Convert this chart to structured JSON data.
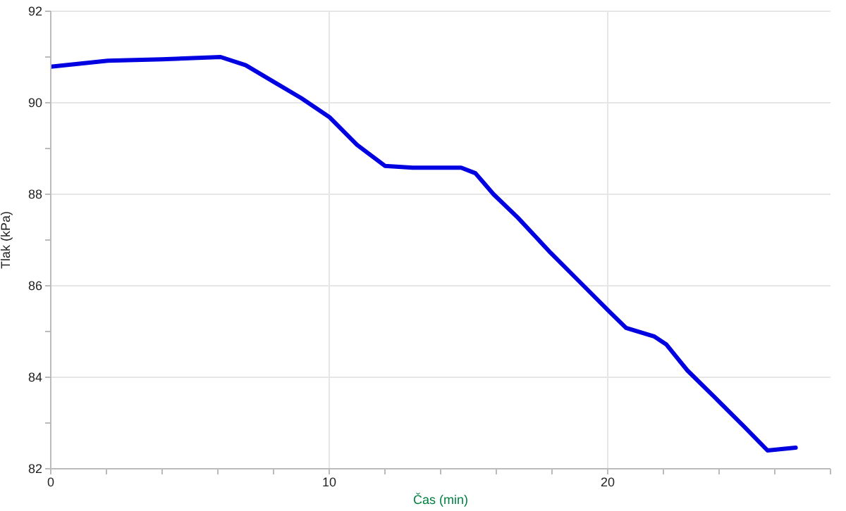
{
  "chart_data": {
    "type": "line",
    "xlabel": "Čas (min)",
    "ylabel": "Tlak (kPa)",
    "xlim": [
      0,
      28
    ],
    "xticks": [
      0,
      {
        "value": 2,
        "label": null
      },
      {
        "value": 4,
        "label": null
      },
      {
        "value": 6,
        "label": null
      },
      {
        "value": 8,
        "label": null
      },
      10,
      {
        "value": 12,
        "label": null
      },
      {
        "value": 14,
        "label": null
      },
      {
        "value": 16,
        "label": null
      },
      {
        "value": 18,
        "label": null
      },
      20,
      {
        "value": 22,
        "label": null
      },
      {
        "value": 24,
        "label": null
      },
      {
        "value": 26,
        "label": null
      },
      {
        "value": 28,
        "label": null
      }
    ],
    "ylim": [
      82,
      92
    ],
    "yticks": [
      82,
      {
        "value": 83,
        "label": null
      },
      84,
      {
        "value": 85,
        "label": null
      },
      86,
      {
        "value": 87,
        "label": null
      },
      88,
      {
        "value": 89,
        "label": null
      },
      90,
      {
        "value": 91,
        "label": null
      },
      92
    ],
    "grid": true,
    "marker": "none",
    "line_style": "solid",
    "x": [
      0,
      2.05,
      4,
      6.1,
      7,
      8,
      9,
      10,
      11,
      12,
      13,
      14.74,
      15.25,
      15.9,
      16.77,
      17.95,
      18.97,
      20.07,
      20.66,
      21.68,
      22.1,
      22.86,
      23.88,
      24.9,
      25.74,
      26.24,
      26.75
    ],
    "series": [
      {
        "color": "#0000e0",
        "values": [
          90.79,
          90.92,
          90.95,
          91.0,
          90.82,
          90.46,
          90.1,
          89.69,
          89.08,
          88.62,
          88.58,
          88.58,
          88.46,
          88.0,
          87.49,
          86.72,
          86.1,
          85.43,
          85.08,
          84.89,
          84.72,
          84.15,
          83.54,
          82.92,
          82.4,
          82.43,
          82.46
        ]
      }
    ]
  }
}
